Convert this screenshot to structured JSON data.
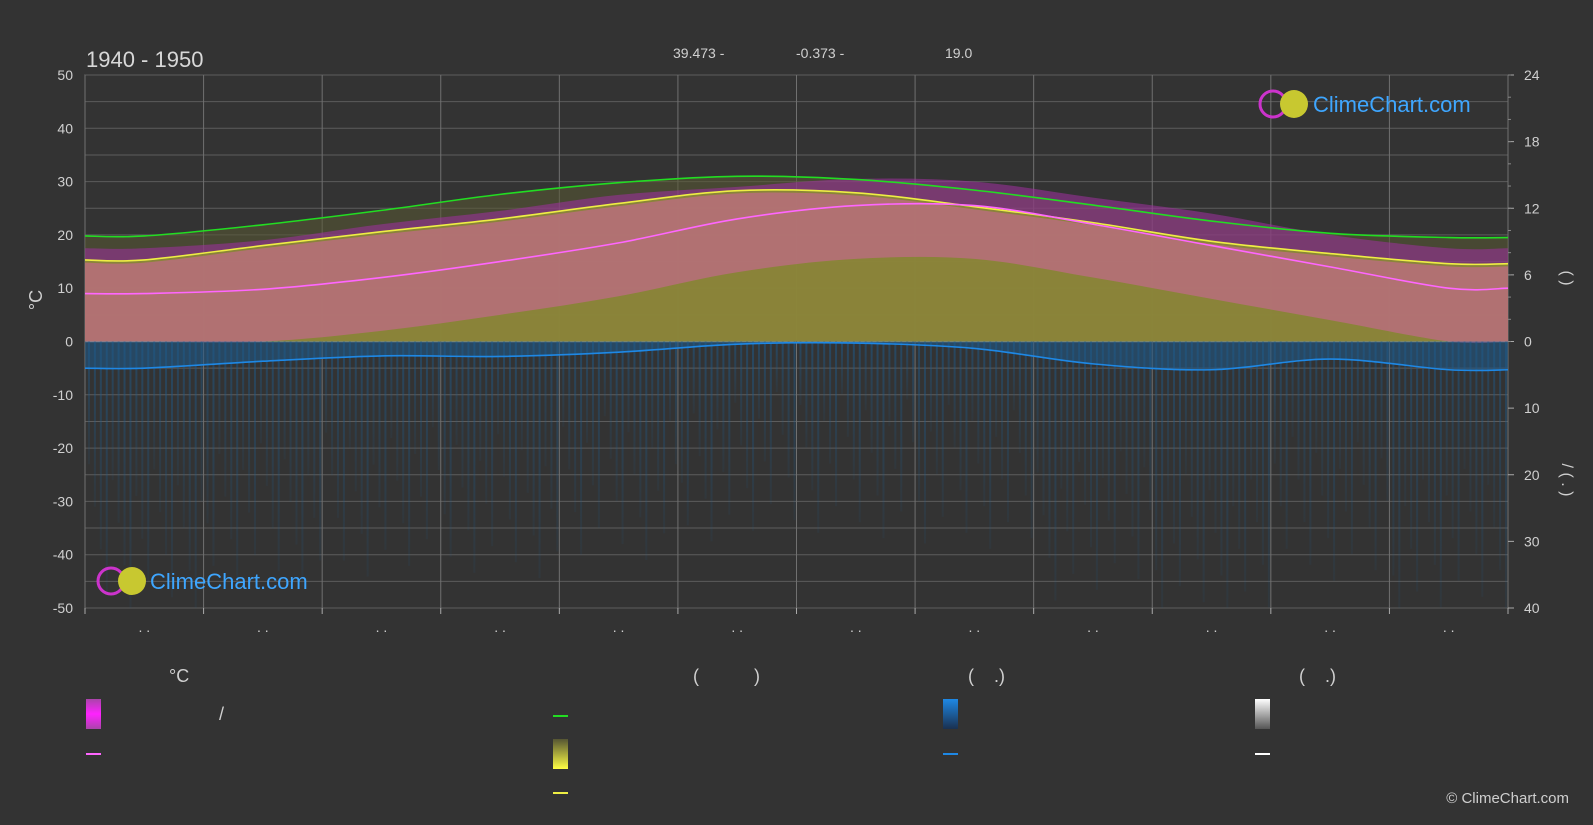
{
  "header": {
    "period": "1940 - 1950",
    "lat": "39.473 -",
    "lon": "-0.373 -",
    "elev": "19.0"
  },
  "brand": {
    "name": "ClimeChart.com",
    "copyright": "© ClimeChart.com"
  },
  "axes": {
    "left_unit": "°C",
    "left_ticks": [
      "50",
      "40",
      "30",
      "20",
      "10",
      "0",
      "-10",
      "-20",
      "-30",
      "-40",
      "-50"
    ],
    "right_upper_ticks": [
      "24",
      "18",
      "12",
      "6",
      "0"
    ],
    "right_lower_ticks": [
      "10",
      "20",
      "30",
      "40"
    ],
    "right_upper_label": "(      )",
    "right_lower_label": "/       ( . )",
    "month_labels": [
      ". .",
      ". .",
      ". .",
      ". .",
      ". .",
      ". .",
      ". .",
      ". .",
      ". .",
      ". .",
      ". .",
      ". ."
    ]
  },
  "legend": {
    "temp_title": "°C",
    "sun_title": "(           )",
    "rain_title": "(    .)",
    "snow_title": "(    .)",
    "temp_range_label": "/"
  },
  "colors": {
    "background": "#333333",
    "grid": "#5a5a5a",
    "daylight": "#22dd22",
    "sunshine": "#eeee44",
    "temp_max": "#ff66ff",
    "temp_range": "#dd22dd",
    "rain": "#1e88e5",
    "olive_fill": "#8c8c33",
    "pink_fill": "#cc6699",
    "brand_blue": "#3ea6ff"
  },
  "chart_data": {
    "type": "area",
    "x": [
      "Jan",
      "Feb",
      "Mar",
      "Apr",
      "May",
      "Jun",
      "Jul",
      "Aug",
      "Sep",
      "Oct",
      "Nov",
      "Dec"
    ],
    "ylim": [
      -50,
      50
    ],
    "y2_upper_lim": [
      0,
      24
    ],
    "y2_lower_lim": [
      0,
      40
    ],
    "series": [
      {
        "key": "daylight",
        "values": [
          19.8,
          21.9,
          24.6,
          27.6,
          29.8,
          31.0,
          30.4,
          28.4,
          25.6,
          22.6,
          20.3,
          19.5
        ]
      },
      {
        "key": "sunshine",
        "values": [
          15.3,
          18.0,
          20.6,
          23.0,
          25.9,
          28.3,
          27.9,
          25.3,
          22.3,
          18.8,
          16.5,
          14.6
        ]
      },
      {
        "key": "temp_max_mean",
        "values": [
          9.0,
          9.8,
          12.0,
          15.0,
          18.5,
          23.0,
          25.5,
          25.5,
          22.0,
          18.0,
          14.0,
          10.0
        ]
      },
      {
        "key": "temp_envelope",
        "values": [
          17.5,
          19.0,
          22.0,
          24.5,
          27.5,
          29.0,
          30.5,
          30.0,
          27.0,
          24.0,
          20.0,
          17.5
        ]
      },
      {
        "key": "precipitation",
        "values": [
          -5.0,
          -3.7,
          -2.7,
          -2.8,
          -2.0,
          -0.5,
          -0.3,
          -1.3,
          -4.2,
          -5.3,
          -3.3,
          -5.3
        ]
      }
    ]
  }
}
